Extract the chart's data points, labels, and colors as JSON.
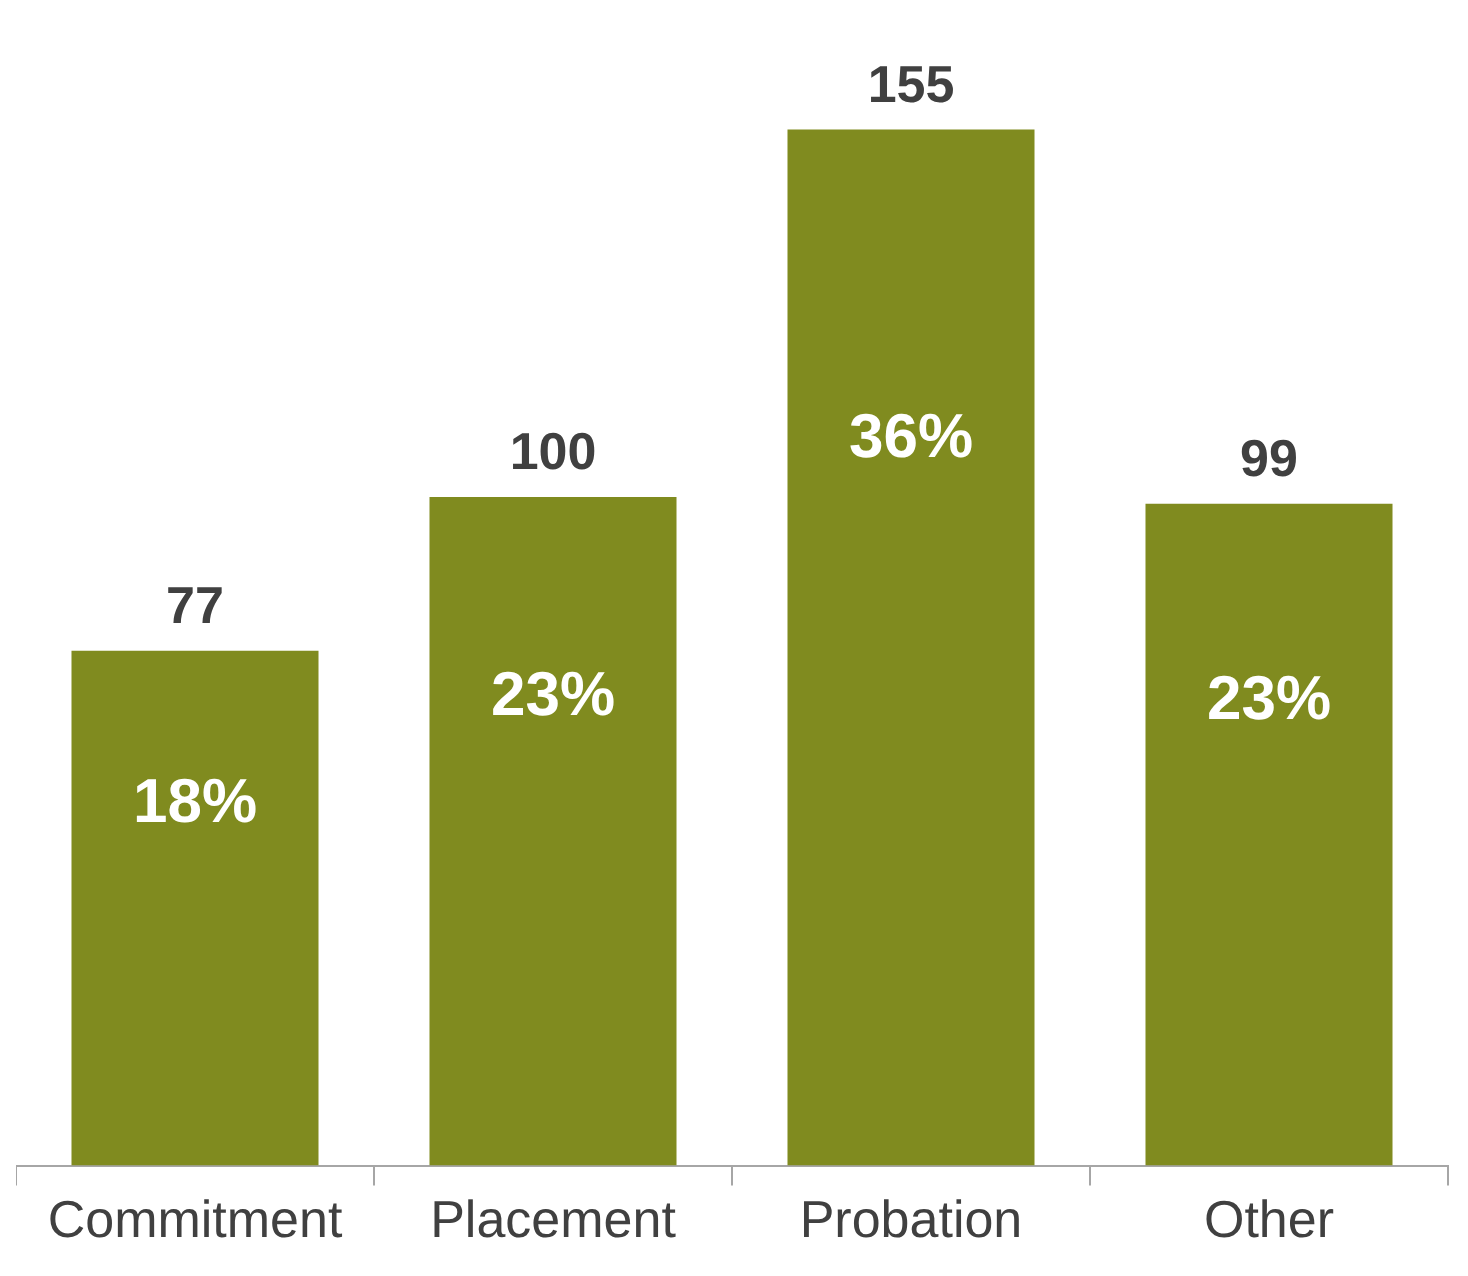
{
  "chart_data": {
    "type": "bar",
    "categories": [
      "Commitment",
      "Placement",
      "Probation",
      "Other"
    ],
    "values": [
      77,
      100,
      155,
      99
    ],
    "color": "#808b1f",
    "data_labels": true,
    "tick_labels": "x",
    "annotations": [
      "18%",
      "23%",
      "36%",
      "23%"
    ]
  }
}
